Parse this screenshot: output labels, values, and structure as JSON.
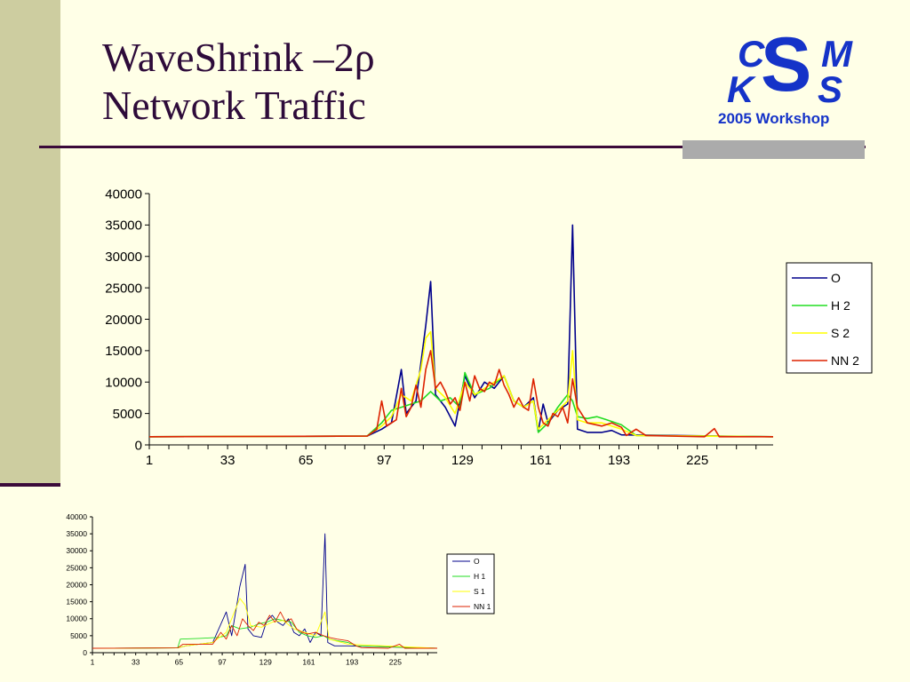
{
  "slide": {
    "title_line1": "WaveShrink –2ρ",
    "title_line2": "Network Traffic"
  },
  "logo": {
    "c": "C",
    "s_big": "S",
    "m": "M",
    "k": "K",
    "s_small": "S",
    "workshop": "2005 Workshop",
    "color": "#1533C8"
  },
  "chart_data": [
    {
      "type": "line",
      "title": "",
      "xlabel": "",
      "ylabel": "",
      "xlim": [
        1,
        256
      ],
      "ylim": [
        0,
        40000
      ],
      "yticks": [
        0,
        5000,
        10000,
        15000,
        20000,
        25000,
        30000,
        35000,
        40000
      ],
      "xticks": [
        1,
        33,
        65,
        97,
        129,
        161,
        193,
        225
      ],
      "legend": "right",
      "series": [
        {
          "name": "O",
          "color": "#00008B",
          "points": [
            [
              1,
              1300
            ],
            [
              90,
              1400
            ],
            [
              96,
              2500
            ],
            [
              100,
              3500
            ],
            [
              104,
              12000
            ],
            [
              106,
              5000
            ],
            [
              110,
              7000
            ],
            [
              114,
              19000
            ],
            [
              116,
              26000
            ],
            [
              118,
              8000
            ],
            [
              122,
              6000
            ],
            [
              126,
              3000
            ],
            [
              130,
              11000
            ],
            [
              134,
              7500
            ],
            [
              138,
              10000
            ],
            [
              142,
              9000
            ],
            [
              146,
              11000
            ],
            [
              150,
              7000
            ],
            [
              154,
              6000
            ],
            [
              158,
              7500
            ],
            [
              160,
              2200
            ],
            [
              162,
              6500
            ],
            [
              164,
              3500
            ],
            [
              168,
              5500
            ],
            [
              172,
              6500
            ],
            [
              174,
              35000
            ],
            [
              176,
              2500
            ],
            [
              180,
              2000
            ],
            [
              186,
              2000
            ],
            [
              190,
              2300
            ],
            [
              194,
              1600
            ],
            [
              256,
              1300
            ]
          ]
        },
        {
          "name": "H 2",
          "color": "#22DD22",
          "points": [
            [
              1,
              1300
            ],
            [
              90,
              1400
            ],
            [
              96,
              3500
            ],
            [
              100,
              5500
            ],
            [
              104,
              6000
            ],
            [
              108,
              6500
            ],
            [
              112,
              7000
            ],
            [
              116,
              8500
            ],
            [
              120,
              7000
            ],
            [
              124,
              7500
            ],
            [
              128,
              6000
            ],
            [
              130,
              11500
            ],
            [
              134,
              8000
            ],
            [
              140,
              9000
            ],
            [
              146,
              11000
            ],
            [
              150,
              7000
            ],
            [
              154,
              6000
            ],
            [
              158,
              7000
            ],
            [
              160,
              2000
            ],
            [
              164,
              3500
            ],
            [
              168,
              6000
            ],
            [
              172,
              8000
            ],
            [
              174,
              7000
            ],
            [
              176,
              4500
            ],
            [
              180,
              4200
            ],
            [
              184,
              4500
            ],
            [
              188,
              4000
            ],
            [
              194,
              3200
            ],
            [
              200,
              1500
            ],
            [
              256,
              1300
            ]
          ]
        },
        {
          "name": "S 2",
          "color": "#FFFF00",
          "points": [
            [
              1,
              1300
            ],
            [
              90,
              1400
            ],
            [
              96,
              3000
            ],
            [
              100,
              4500
            ],
            [
              104,
              8000
            ],
            [
              108,
              7000
            ],
            [
              112,
              12000
            ],
            [
              114,
              17000
            ],
            [
              116,
              18000
            ],
            [
              118,
              9000
            ],
            [
              122,
              7500
            ],
            [
              126,
              5000
            ],
            [
              130,
              10000
            ],
            [
              134,
              8000
            ],
            [
              140,
              9500
            ],
            [
              146,
              11000
            ],
            [
              150,
              7000
            ],
            [
              154,
              6000
            ],
            [
              158,
              7000
            ],
            [
              160,
              2500
            ],
            [
              164,
              4000
            ],
            [
              168,
              5500
            ],
            [
              172,
              7000
            ],
            [
              174,
              15000
            ],
            [
              176,
              4000
            ],
            [
              180,
              3500
            ],
            [
              186,
              3500
            ],
            [
              194,
              2500
            ],
            [
              200,
              1500
            ],
            [
              256,
              1300
            ]
          ]
        },
        {
          "name": "NN 2",
          "color": "#DD2200",
          "points": [
            [
              1,
              1300
            ],
            [
              90,
              1400
            ],
            [
              94,
              2500
            ],
            [
              96,
              7000
            ],
            [
              98,
              3000
            ],
            [
              102,
              4000
            ],
            [
              104,
              9000
            ],
            [
              106,
              4500
            ],
            [
              108,
              6000
            ],
            [
              110,
              9500
            ],
            [
              112,
              6000
            ],
            [
              114,
              12000
            ],
            [
              116,
              15000
            ],
            [
              118,
              9000
            ],
            [
              120,
              10000
            ],
            [
              122,
              8500
            ],
            [
              124,
              6500
            ],
            [
              126,
              7500
            ],
            [
              128,
              5500
            ],
            [
              130,
              10000
            ],
            [
              132,
              7000
            ],
            [
              134,
              11000
            ],
            [
              136,
              9000
            ],
            [
              138,
              8500
            ],
            [
              140,
              10000
            ],
            [
              142,
              9500
            ],
            [
              144,
              12000
            ],
            [
              146,
              9500
            ],
            [
              148,
              8000
            ],
            [
              150,
              6000
            ],
            [
              152,
              7500
            ],
            [
              154,
              6000
            ],
            [
              156,
              5500
            ],
            [
              158,
              10500
            ],
            [
              160,
              6000
            ],
            [
              162,
              3500
            ],
            [
              164,
              3000
            ],
            [
              166,
              5000
            ],
            [
              168,
              4500
            ],
            [
              170,
              6000
            ],
            [
              172,
              3500
            ],
            [
              174,
              10500
            ],
            [
              176,
              6000
            ],
            [
              180,
              3500
            ],
            [
              186,
              3000
            ],
            [
              190,
              3500
            ],
            [
              194,
              2800
            ],
            [
              196,
              1500
            ],
            [
              200,
              2500
            ],
            [
              204,
              1500
            ],
            [
              228,
              1300
            ],
            [
              232,
              2600
            ],
            [
              234,
              1300
            ],
            [
              256,
              1300
            ]
          ]
        }
      ]
    },
    {
      "type": "line",
      "title": "",
      "xlabel": "",
      "ylabel": "",
      "xlim": [
        1,
        256
      ],
      "ylim": [
        0,
        40000
      ],
      "yticks": [
        0,
        5000,
        10000,
        15000,
        20000,
        25000,
        30000,
        35000,
        40000
      ],
      "xticks": [
        1,
        33,
        65,
        97,
        129,
        161,
        193,
        225
      ],
      "legend": "right",
      "series": [
        {
          "name": "O",
          "color": "#00008B",
          "points": [
            [
              1,
              1300
            ],
            [
              64,
              1400
            ],
            [
              70,
              2000
            ],
            [
              80,
              2500
            ],
            [
              90,
              3000
            ],
            [
              100,
              12000
            ],
            [
              104,
              5000
            ],
            [
              110,
              19500
            ],
            [
              114,
              26000
            ],
            [
              116,
              7000
            ],
            [
              120,
              5000
            ],
            [
              126,
              4500
            ],
            [
              130,
              9500
            ],
            [
              134,
              11000
            ],
            [
              138,
              9000
            ],
            [
              142,
              8000
            ],
            [
              146,
              10000
            ],
            [
              150,
              6000
            ],
            [
              154,
              5000
            ],
            [
              158,
              7000
            ],
            [
              162,
              3000
            ],
            [
              166,
              6000
            ],
            [
              170,
              5000
            ],
            [
              173,
              35000
            ],
            [
              175,
              3000
            ],
            [
              180,
              2000
            ],
            [
              190,
              2000
            ],
            [
              256,
              1300
            ]
          ]
        },
        {
          "name": "H 1",
          "color": "#22DD22",
          "points": [
            [
              1,
              1300
            ],
            [
              64,
              1400
            ],
            [
              66,
              4000
            ],
            [
              80,
              4200
            ],
            [
              94,
              4500
            ],
            [
              100,
              5000
            ],
            [
              104,
              8000
            ],
            [
              110,
              7000
            ],
            [
              118,
              7500
            ],
            [
              124,
              8500
            ],
            [
              130,
              9000
            ],
            [
              136,
              10000
            ],
            [
              142,
              9500
            ],
            [
              148,
              9000
            ],
            [
              154,
              6000
            ],
            [
              160,
              5000
            ],
            [
              166,
              4500
            ],
            [
              172,
              5000
            ],
            [
              176,
              4000
            ],
            [
              182,
              3500
            ],
            [
              190,
              3000
            ],
            [
              196,
              2000
            ],
            [
              256,
              1300
            ]
          ]
        },
        {
          "name": "S 1",
          "color": "#FFFF00",
          "points": [
            [
              1,
              1300
            ],
            [
              64,
              1400
            ],
            [
              70,
              2000
            ],
            [
              90,
              3000
            ],
            [
              100,
              6000
            ],
            [
              110,
              16000
            ],
            [
              114,
              14000
            ],
            [
              118,
              8000
            ],
            [
              126,
              7500
            ],
            [
              134,
              9000
            ],
            [
              142,
              9500
            ],
            [
              150,
              7000
            ],
            [
              158,
              6000
            ],
            [
              166,
              5000
            ],
            [
              173,
              12000
            ],
            [
              176,
              4000
            ],
            [
              190,
              2500
            ],
            [
              256,
              1300
            ]
          ]
        },
        {
          "name": "NN 1",
          "color": "#DD2200",
          "points": [
            [
              1,
              1300
            ],
            [
              64,
              1400
            ],
            [
              68,
              2500
            ],
            [
              90,
              2500
            ],
            [
              96,
              6000
            ],
            [
              100,
              4000
            ],
            [
              104,
              8000
            ],
            [
              108,
              5000
            ],
            [
              112,
              10000
            ],
            [
              116,
              8000
            ],
            [
              120,
              6500
            ],
            [
              124,
              9000
            ],
            [
              128,
              8000
            ],
            [
              132,
              11000
            ],
            [
              136,
              9000
            ],
            [
              140,
              12000
            ],
            [
              144,
              9000
            ],
            [
              148,
              10000
            ],
            [
              152,
              7000
            ],
            [
              156,
              6000
            ],
            [
              160,
              5500
            ],
            [
              166,
              6000
            ],
            [
              172,
              5000
            ],
            [
              176,
              4500
            ],
            [
              182,
              4000
            ],
            [
              190,
              3500
            ],
            [
              196,
              2000
            ],
            [
              200,
              1500
            ],
            [
              220,
              1300
            ],
            [
              228,
              2500
            ],
            [
              232,
              1300
            ],
            [
              256,
              1300
            ]
          ]
        }
      ]
    }
  ]
}
